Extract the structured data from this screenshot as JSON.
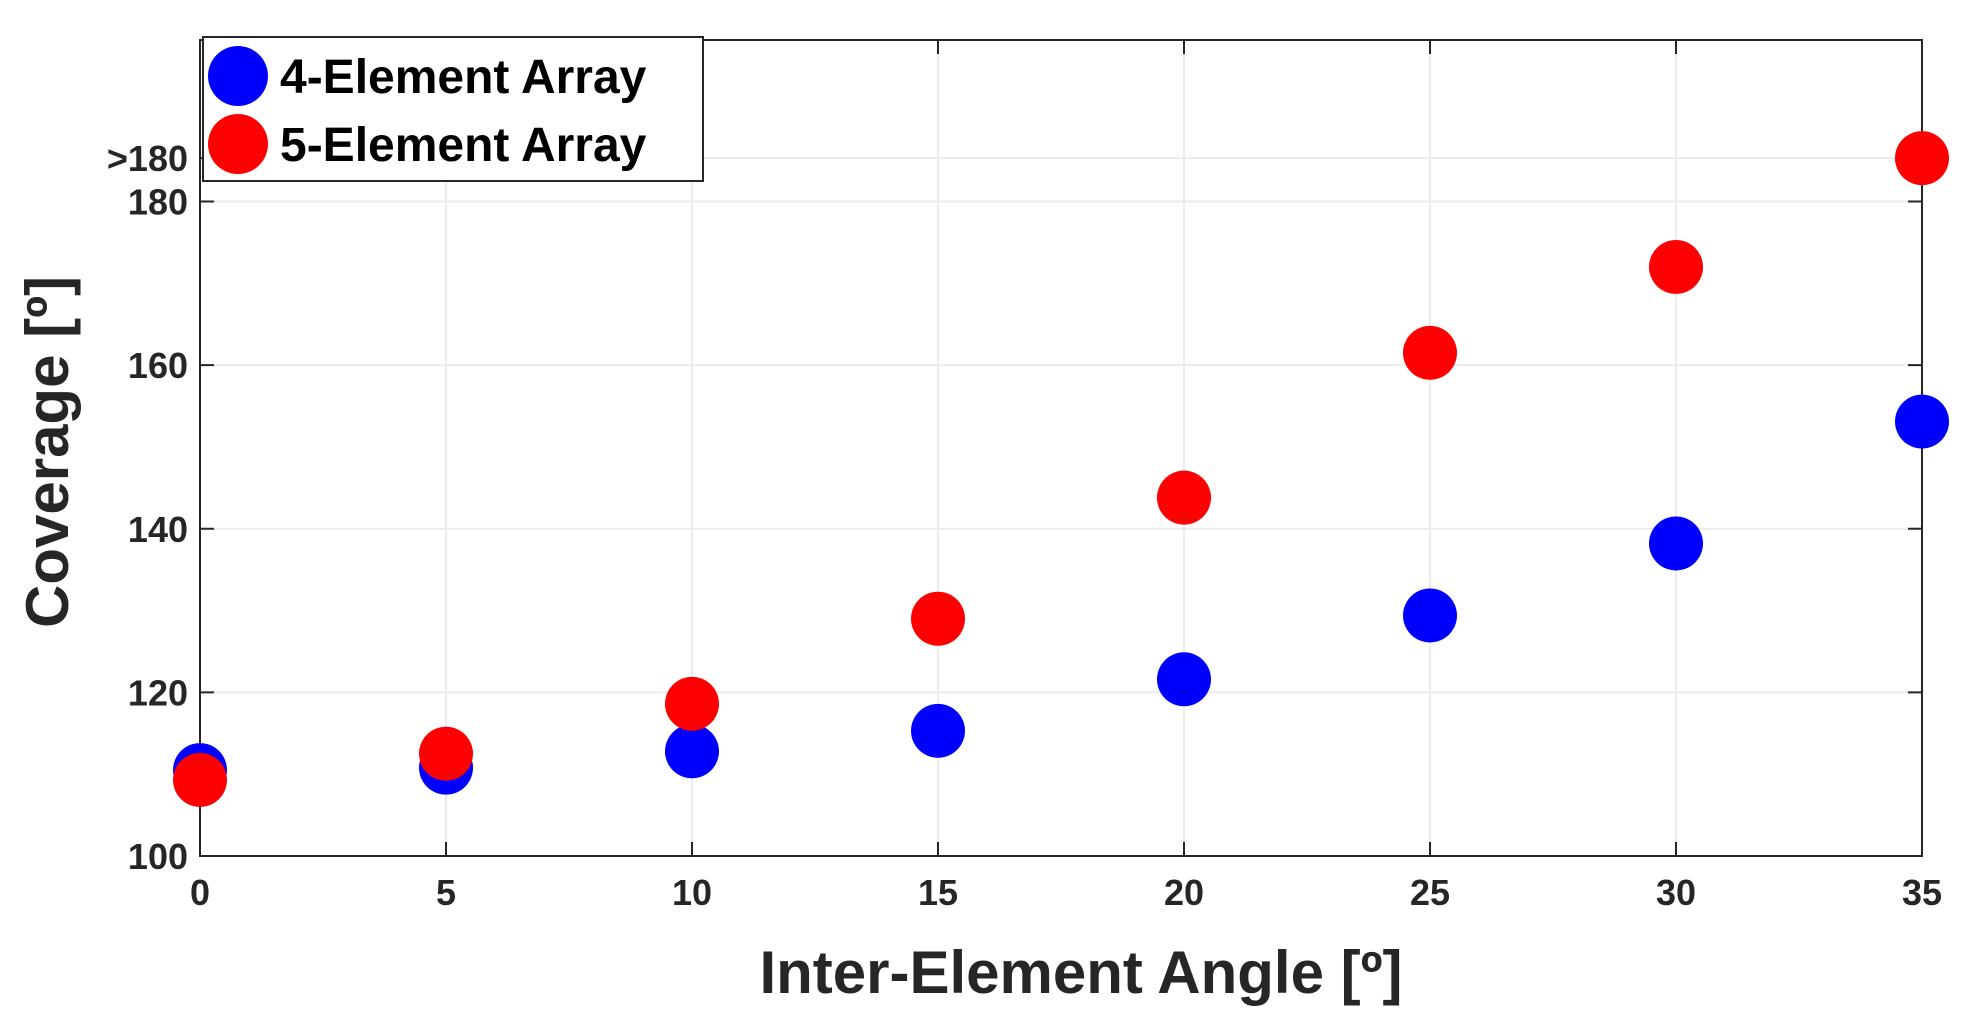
{
  "chart_data": {
    "type": "scatter",
    "xlabel": "Inter-Element Angle [º]",
    "ylabel": "Coverage [º]",
    "xlim": [
      0,
      35
    ],
    "ylim": [
      100,
      186
    ],
    "x_ticks": [
      0,
      5,
      10,
      15,
      20,
      25,
      30,
      35
    ],
    "x_tick_labels": [
      "0",
      "5",
      "10",
      "15",
      "20",
      "25",
      "30",
      "35"
    ],
    "y_ticks": [
      100,
      120,
      140,
      160,
      180,
      185.3
    ],
    "y_tick_labels": [
      "100",
      "120",
      "140",
      "160",
      "180",
      ">180"
    ],
    "grid": true,
    "legend_position": "top-left",
    "series": [
      {
        "name": "4-Element Array",
        "color": "#0000ff",
        "x": [
          0,
          5,
          10,
          15,
          20,
          25,
          30,
          35
        ],
        "y": [
          110.5,
          110.8,
          112.8,
          115.3,
          121.6,
          129.4,
          138.2,
          153.1
        ]
      },
      {
        "name": "5-Element Array",
        "color": "#ff0000",
        "x": [
          0,
          5,
          10,
          15,
          20,
          25,
          30,
          35
        ],
        "y": [
          109.3,
          112.5,
          118.6,
          129.0,
          143.8,
          161.5,
          172.0,
          185.3
        ]
      }
    ]
  }
}
